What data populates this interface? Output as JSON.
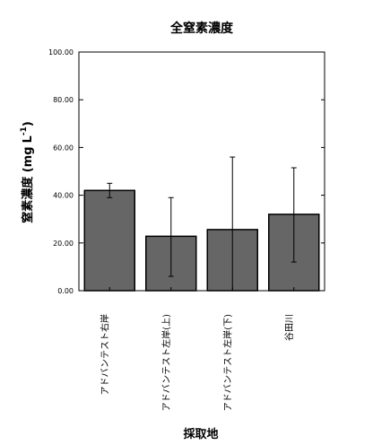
{
  "chart_data": {
    "type": "bar",
    "title": "全窒素濃度",
    "xlabel": "採取地",
    "ylabel": {
      "main": "窒素濃度 (mg",
      "unit": "L",
      "exponent": "-1",
      "close": ")"
    },
    "ylim": [
      0,
      100
    ],
    "yticks": [
      "0.00",
      "20.00",
      "40.00",
      "60.00",
      "80.00",
      "100.00"
    ],
    "ytick_values": [
      0,
      20,
      40,
      60,
      80,
      100
    ],
    "categories": [
      "アドバンテスト右岸",
      "アドバンテスト左岸(上)",
      "アドバンテスト左岸(下)",
      "谷田川"
    ],
    "values": [
      42.0,
      22.8,
      25.6,
      32.0
    ],
    "error_low": [
      39.0,
      6.0,
      0.0,
      12.0
    ],
    "error_high": [
      45.0,
      39.0,
      56.0,
      51.5
    ],
    "bar_color": "#666666",
    "grid": false
  }
}
